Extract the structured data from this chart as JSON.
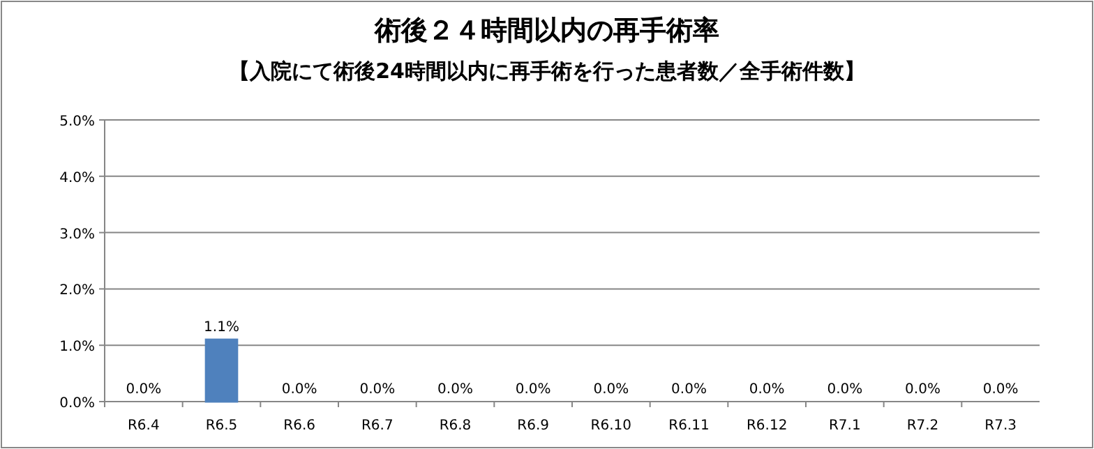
{
  "chart_data": {
    "type": "bar",
    "title": "術後２４時間以内の再手術率",
    "subtitle": "【入院にて術後24時間以内に再手術を行った患者数／全手術件数】",
    "categories": [
      "R6.4",
      "R6.5",
      "R6.6",
      "R6.7",
      "R6.8",
      "R6.9",
      "R6.10",
      "R6.11",
      "R6.12",
      "R7.1",
      "R7.2",
      "R7.3"
    ],
    "values": [
      0,
      1.1,
      0,
      0,
      0,
      0,
      0,
      0,
      0,
      0,
      0,
      0
    ],
    "color": "#4f81bd",
    "ylim": [
      0,
      5
    ],
    "yticks": [
      {
        "value": 0,
        "label": "0.0%"
      },
      {
        "value": 1,
        "label": "1.0%"
      },
      {
        "value": 2,
        "label": "2.0%"
      },
      {
        "value": 3,
        "label": "3.0%"
      },
      {
        "value": 4,
        "label": "4.0%"
      },
      {
        "value": 5,
        "label": "5.0%"
      }
    ],
    "value_labels": [
      "0.0%",
      "1.1%",
      "0.0%",
      "0.0%",
      "0.0%",
      "0.0%",
      "0.0%",
      "0.0%",
      "0.0%",
      "0.0%",
      "0.0%",
      "0.0%"
    ],
    "grid": "y"
  }
}
